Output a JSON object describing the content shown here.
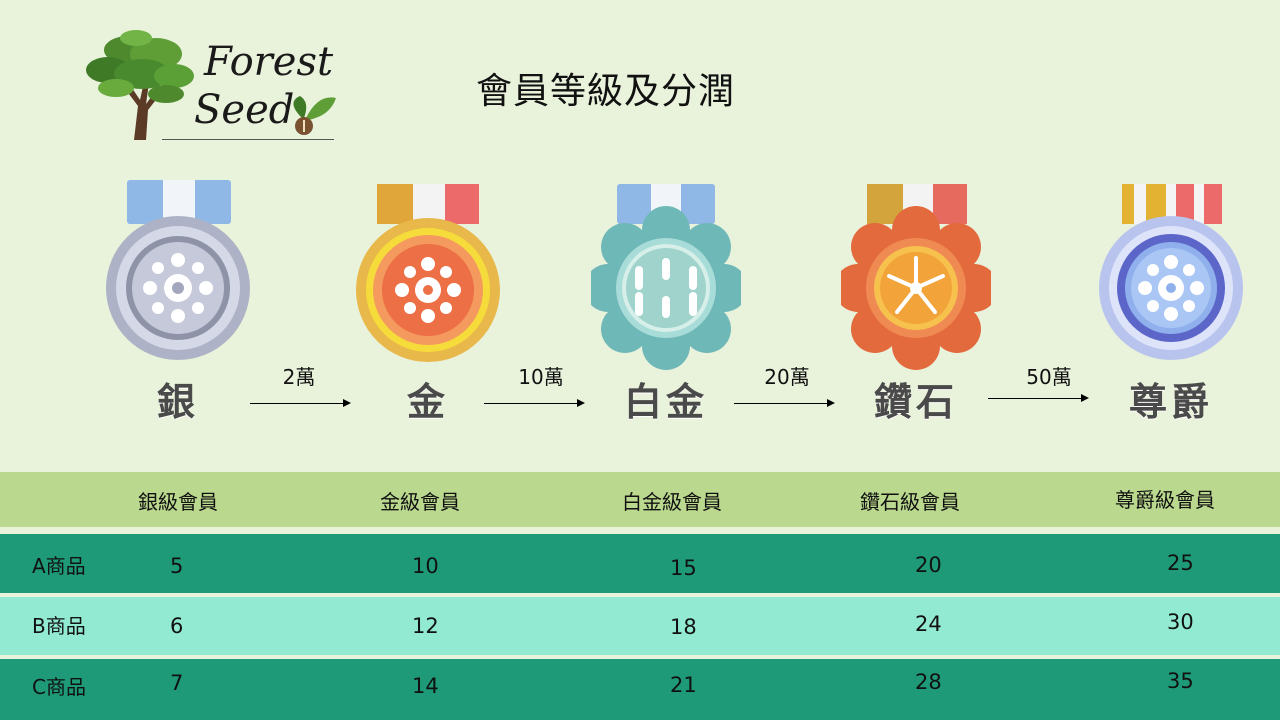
{
  "logo": {
    "line1": "Forest",
    "line2": "Seed"
  },
  "title": "會員等級及分潤",
  "tiers": [
    {
      "label": "銀",
      "icon": "silver-medal-icon"
    },
    {
      "label": "金",
      "icon": "gold-medal-icon"
    },
    {
      "label": "白金",
      "icon": "platinum-medal-icon"
    },
    {
      "label": "鑽石",
      "icon": "diamond-medal-icon"
    },
    {
      "label": "尊爵",
      "icon": "noble-medal-icon"
    }
  ],
  "thresholds": [
    "2萬",
    "10萬",
    "20萬",
    "50萬"
  ],
  "table": {
    "headers": [
      "銀級會員",
      "金級會員",
      "白金級會員",
      "鑽石級會員",
      "尊爵級會員"
    ],
    "rows": [
      {
        "label": "A商品",
        "values": [
          "5",
          "10",
          "15",
          "20",
          "25"
        ]
      },
      {
        "label": "B商品",
        "values": [
          "6",
          "12",
          "18",
          "24",
          "30"
        ]
      },
      {
        "label": "C商品",
        "values": [
          "7",
          "14",
          "21",
          "28",
          "35"
        ]
      }
    ]
  },
  "colors": {
    "background": "#e9f2db",
    "header_row": "#bad98f",
    "dark_row": "#1e9a78",
    "light_row": "#92ead2"
  }
}
